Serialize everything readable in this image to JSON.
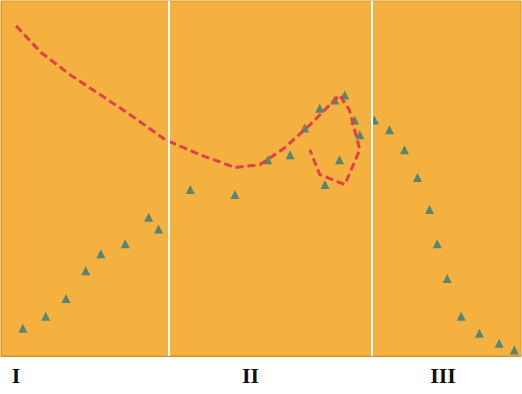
{
  "chart_data": {
    "type": "line",
    "xlim": [
      0,
      100
    ],
    "ylim": [
      0,
      100
    ],
    "xticks": [
      {
        "value": 2.9,
        "label": "I"
      },
      {
        "value": 48,
        "label": "II"
      },
      {
        "value": 85,
        "label": "III"
      }
    ],
    "vlines": [
      32.2,
      71.3
    ],
    "grid": false,
    "tick_labels": "x",
    "series": [
      {
        "type": "line",
        "color": "#e0404a",
        "line_style": "dashed",
        "marker": "none",
        "x": [
          2.9,
          7.7,
          13.4,
          19.2,
          24.9,
          31.6,
          38.3,
          45.0,
          49.8,
          54.6,
          59.4,
          63.2,
          65.1,
          67.0,
          69.0,
          66.1,
          61.3,
          59.4
        ],
        "values": [
          93.0,
          85.5,
          79.1,
          73.5,
          67.9,
          60.9,
          56.7,
          53.1,
          53.9,
          58.7,
          65.1,
          70.7,
          73.5,
          69.3,
          58.1,
          48.3,
          51.1,
          58.1
        ]
      },
      {
        "type": "scatter",
        "color": "#2a7c84",
        "line_style": "none",
        "marker": "triangle",
        "x": [
          4.2,
          8.6,
          12.5,
          16.3,
          19.2,
          23.9,
          28.4,
          30.3,
          36.4,
          45.0,
          51.3,
          55.6,
          58.4,
          61.3,
          64.2,
          66.1,
          68.0,
          65.1,
          62.3,
          69.0,
          71.8,
          74.7,
          77.6,
          80.1,
          82.4,
          83.9,
          85.8,
          88.5,
          92.0,
          95.8,
          98.7
        ],
        "values": [
          7.8,
          11.2,
          16.2,
          24.0,
          28.8,
          31.6,
          39.1,
          35.8,
          46.9,
          45.5,
          55.3,
          56.7,
          64.2,
          69.8,
          72.1,
          73.5,
          66.5,
          55.3,
          48.3,
          62.3,
          66.5,
          63.7,
          58.1,
          50.3,
          41.3,
          31.6,
          21.8,
          11.2,
          6.4,
          3.6,
          1.7
        ]
      }
    ]
  }
}
